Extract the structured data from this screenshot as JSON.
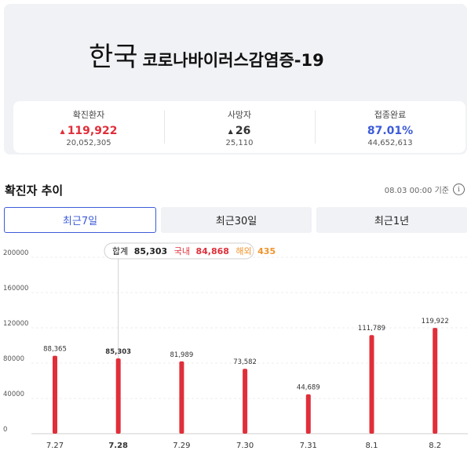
{
  "hero": {
    "country": "한국",
    "disease": "코로나바이러스감염증-19"
  },
  "stats": [
    {
      "label": "확진환자",
      "value": "119,922",
      "sub": "20,052,305",
      "trend": "up",
      "color": "#e02f3a"
    },
    {
      "label": "사망자",
      "value": "26",
      "sub": "25,110",
      "trend": "up",
      "color": "#333333"
    },
    {
      "label": "접종완료",
      "value": "87.01%",
      "sub": "44,652,613",
      "trend": "none",
      "color": "#3c5bd8"
    }
  ],
  "section": {
    "title": "확진자 추이",
    "asof": "08.03 00:00 기준",
    "info_icon": "info-icon"
  },
  "tabs": [
    {
      "label": "최근7일",
      "active": true
    },
    {
      "label": "최근30일",
      "active": false
    },
    {
      "label": "최근1년",
      "active": false
    }
  ],
  "tooltip": {
    "total_label": "합계",
    "total_value": "85,303",
    "domestic_label": "국내",
    "domestic_value": "84,868",
    "overseas_label": "해외",
    "overseas_value": "435"
  },
  "chart_data": {
    "type": "bar",
    "categories": [
      "7.27",
      "7.28",
      "7.29",
      "7.30",
      "7.31",
      "8.1",
      "8.2"
    ],
    "values": [
      88365,
      85303,
      81989,
      73582,
      44689,
      111789,
      119922
    ],
    "value_labels": [
      "88,365",
      "85,303",
      "81,989",
      "73,582",
      "44,689",
      "111,789",
      "119,922"
    ],
    "yticks": [
      "200000",
      "160000",
      "120000",
      "80000",
      "40000",
      "0"
    ],
    "ylim": [
      0,
      200000
    ],
    "highlight_index": 1,
    "bar_color": "#e02f3a",
    "grid": true
  }
}
